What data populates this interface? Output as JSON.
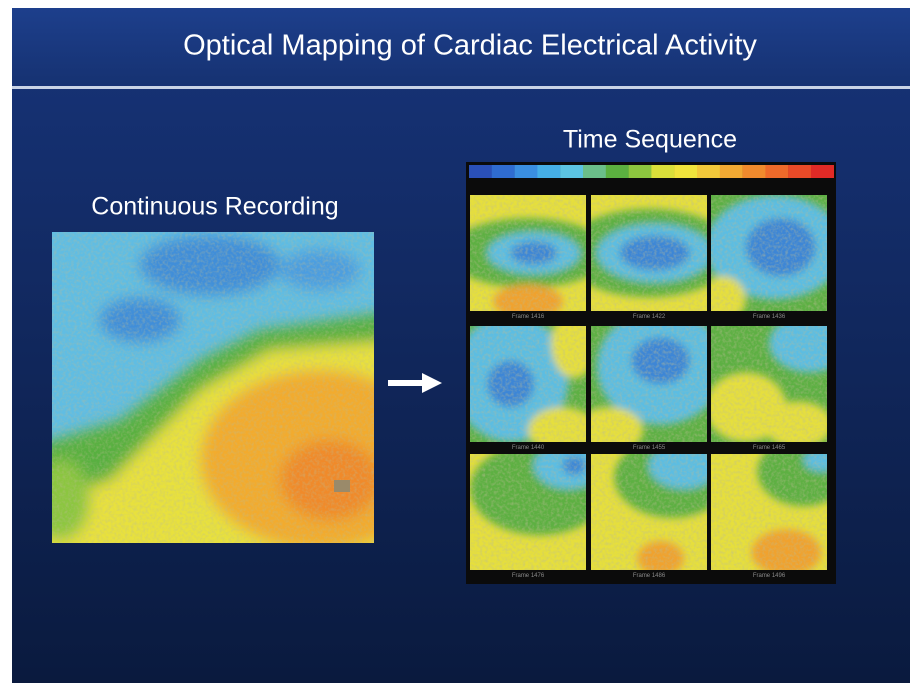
{
  "title": "Optical Mapping of Cardiac Electrical Activity",
  "left_label": "Continuous Recording",
  "right_label": "Time Sequence",
  "frames": [
    "Frame 1416",
    "Frame 1422",
    "Frame 1436",
    "Frame 1440",
    "Frame 1455",
    "Frame 1465",
    "Frame 1476",
    "Frame 1486",
    "Frame 1496"
  ]
}
